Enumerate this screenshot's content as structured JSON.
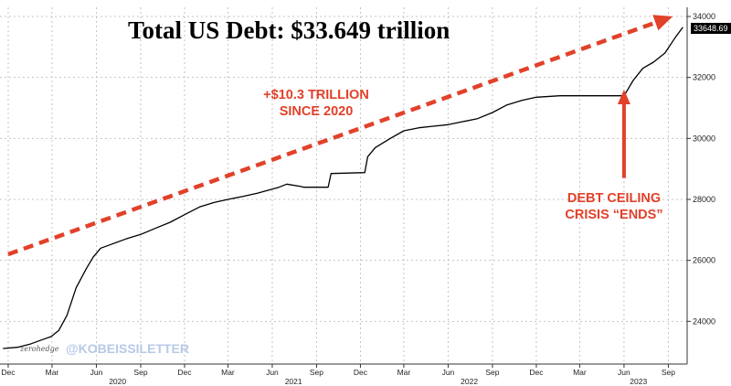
{
  "chart_data": {
    "type": "line",
    "title": "Total US Debt: $33.649 trillion",
    "ylim": [
      22600,
      34300
    ],
    "y_ticks": [
      24000,
      26000,
      28000,
      30000,
      32000,
      34000
    ],
    "grid": true,
    "x_month_ticks": [
      {
        "label": "Dec",
        "x": "2019-12-01"
      },
      {
        "label": "Mar",
        "x": "2020-03-01"
      },
      {
        "label": "Jun",
        "x": "2020-06-01"
      },
      {
        "label": "Sep",
        "x": "2020-09-01"
      },
      {
        "label": "Dec",
        "x": "2020-12-01"
      },
      {
        "label": "Mar",
        "x": "2021-03-01"
      },
      {
        "label": "Jun",
        "x": "2021-06-01"
      },
      {
        "label": "Sep",
        "x": "2021-09-01"
      },
      {
        "label": "Dec",
        "x": "2021-12-01"
      },
      {
        "label": "Mar",
        "x": "2022-03-01"
      },
      {
        "label": "Jun",
        "x": "2022-06-01"
      },
      {
        "label": "Sep",
        "x": "2022-09-01"
      },
      {
        "label": "Dec",
        "x": "2022-12-01"
      },
      {
        "label": "Mar",
        "x": "2023-03-01"
      },
      {
        "label": "Jun",
        "x": "2023-06-01"
      },
      {
        "label": "Sep",
        "x": "2023-09-01"
      }
    ],
    "x_year_labels": [
      {
        "label": "2020",
        "x": "2020-07-15"
      },
      {
        "label": "2021",
        "x": "2021-07-15"
      },
      {
        "label": "2022",
        "x": "2022-07-15"
      },
      {
        "label": "2023",
        "x": "2023-07-01"
      }
    ],
    "series": [
      {
        "color": "#000000",
        "points": [
          [
            "2019-11-20",
            23110
          ],
          [
            "2019-12-20",
            23150
          ],
          [
            "2020-01-15",
            23250
          ],
          [
            "2020-02-10",
            23400
          ],
          [
            "2020-02-28",
            23500
          ],
          [
            "2020-03-15",
            23700
          ],
          [
            "2020-04-01",
            24200
          ],
          [
            "2020-04-20",
            25100
          ],
          [
            "2020-05-10",
            25700
          ],
          [
            "2020-05-25",
            26100
          ],
          [
            "2020-06-10",
            26400
          ],
          [
            "2020-07-01",
            26520
          ],
          [
            "2020-08-01",
            26700
          ],
          [
            "2020-09-01",
            26850
          ],
          [
            "2020-10-01",
            27050
          ],
          [
            "2020-11-01",
            27250
          ],
          [
            "2020-12-01",
            27500
          ],
          [
            "2021-01-01",
            27750
          ],
          [
            "2021-02-01",
            27900
          ],
          [
            "2021-03-01",
            28000
          ],
          [
            "2021-04-01",
            28100
          ],
          [
            "2021-05-01",
            28200
          ],
          [
            "2021-06-15",
            28400
          ],
          [
            "2021-07-01",
            28500
          ],
          [
            "2021-08-01",
            28420
          ],
          [
            "2021-08-05",
            28400
          ],
          [
            "2021-09-25",
            28400
          ],
          [
            "2021-10-01",
            28850
          ],
          [
            "2021-12-10",
            28880
          ],
          [
            "2021-12-16",
            29400
          ],
          [
            "2022-01-01",
            29700
          ],
          [
            "2022-02-01",
            30000
          ],
          [
            "2022-03-01",
            30250
          ],
          [
            "2022-04-01",
            30350
          ],
          [
            "2022-05-01",
            30400
          ],
          [
            "2022-06-01",
            30450
          ],
          [
            "2022-07-01",
            30550
          ],
          [
            "2022-08-01",
            30650
          ],
          [
            "2022-09-01",
            30850
          ],
          [
            "2022-10-01",
            31100
          ],
          [
            "2022-11-01",
            31250
          ],
          [
            "2022-12-01",
            31350
          ],
          [
            "2023-01-19",
            31400
          ],
          [
            "2023-06-02",
            31400
          ],
          [
            "2023-06-05",
            31500
          ],
          [
            "2023-06-20",
            31900
          ],
          [
            "2023-07-10",
            32300
          ],
          [
            "2023-08-01",
            32500
          ],
          [
            "2023-08-25",
            32800
          ],
          [
            "2023-09-15",
            33300
          ],
          [
            "2023-10-01",
            33649
          ]
        ]
      }
    ],
    "last_value_label": "33648.69",
    "trend_arrow": {
      "color": "#e2412a",
      "from": [
        "2019-12-01",
        26200
      ],
      "to": [
        "2023-09-10",
        34000
      ]
    },
    "ceiling_arrow": {
      "color": "#e2412a",
      "x": "2023-06-01",
      "from_y": 28700,
      "to_y": 31600
    },
    "annotations": {
      "gain_line1": "+$10.3 TRILLION",
      "gain_line2": "SINCE 2020",
      "ceiling_line1": "DEBT CEILING",
      "ceiling_line2": "CRISIS “ENDS”"
    },
    "watermarks": {
      "zerohedge": "zerohedge",
      "kobeissi": "@KOBEISSILETTER"
    }
  }
}
